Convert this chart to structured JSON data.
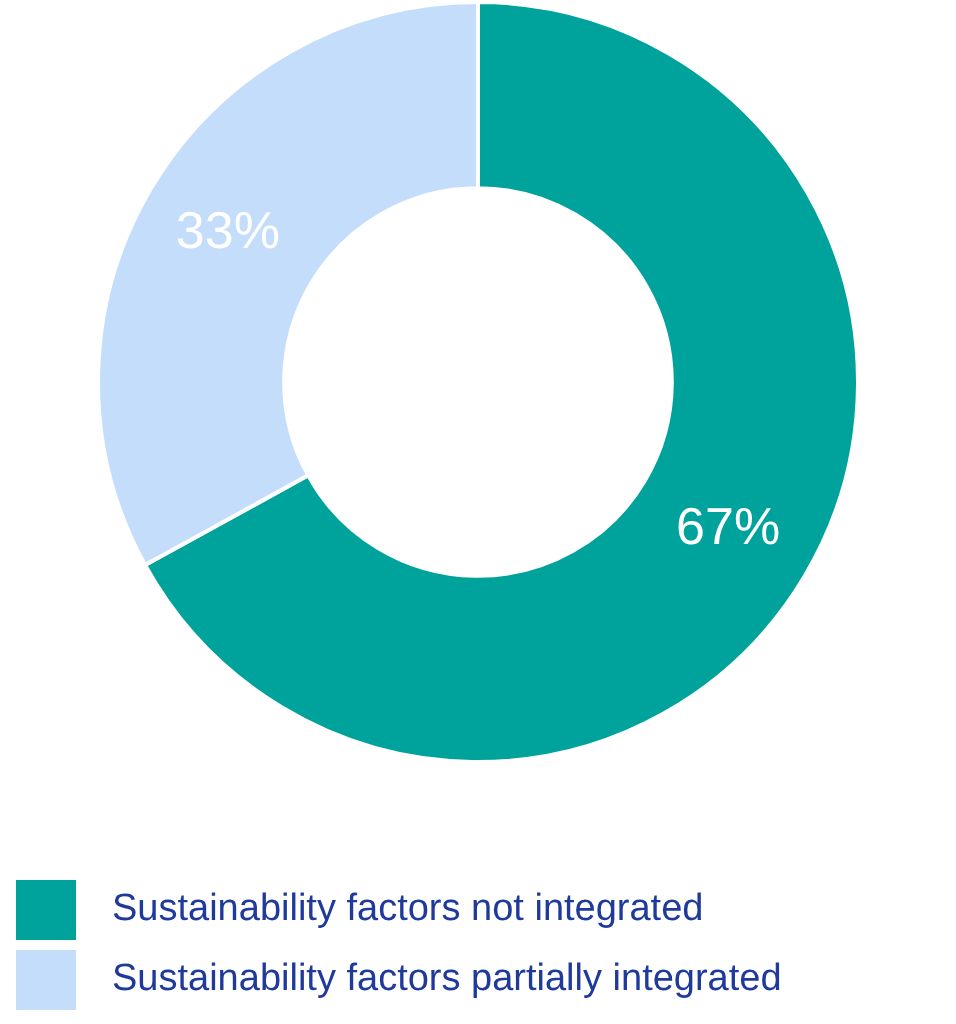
{
  "chart_data": {
    "type": "donut",
    "categories": [
      "Sustainability factors not integrated",
      "Sustainability factors partially integrated"
    ],
    "values": [
      67,
      33
    ],
    "colors": [
      "#00a39c",
      "#c3ddfb"
    ],
    "value_labels": [
      "67%",
      "33%"
    ],
    "legend": "bottom left"
  }
}
